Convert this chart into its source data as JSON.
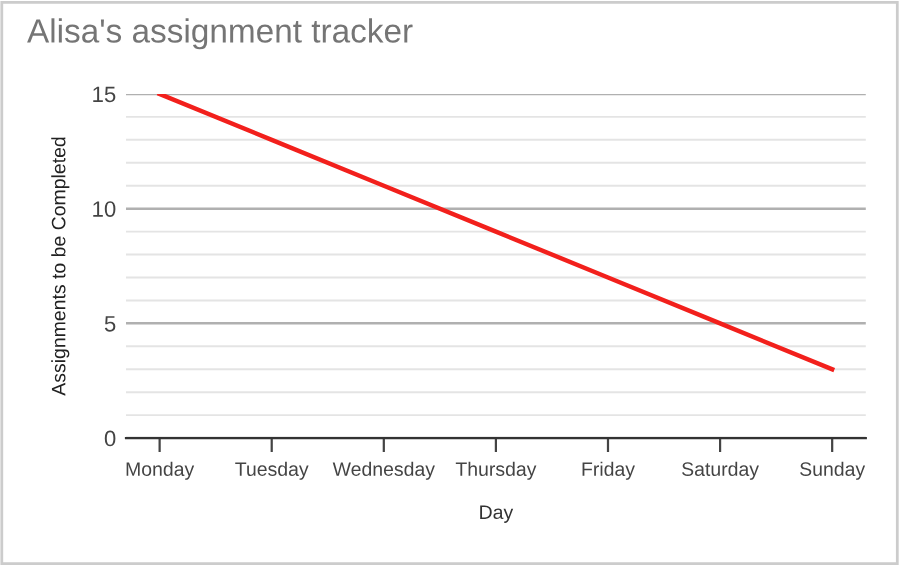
{
  "chart_data": {
    "type": "line",
    "title": "Alisa's assignment tracker",
    "xlabel": "Day",
    "ylabel": "Assignments to be Completed",
    "categories": [
      "Monday",
      "Tuesday",
      "Wednesday",
      "Thursday",
      "Friday",
      "Saturday",
      "Sunday"
    ],
    "series": [
      {
        "color": "#f2201c",
        "values": [
          15,
          13,
          11,
          9,
          7,
          5,
          3
        ]
      }
    ],
    "ylim": [
      0,
      15
    ],
    "yticks": [
      0,
      5,
      10,
      15
    ],
    "grid": "y",
    "legend": false,
    "marker": "none",
    "line_style": "solid"
  }
}
